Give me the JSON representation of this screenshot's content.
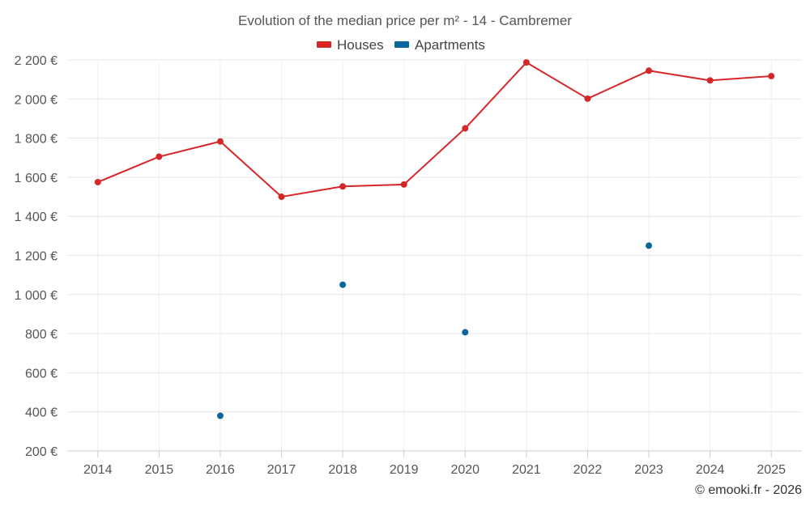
{
  "chart_data": {
    "type": "line",
    "title": "Evolution of the median price per m² - 14 - Cambremer",
    "credit": "© emooki.fr - 2026",
    "categories": [
      "2014",
      "2015",
      "2016",
      "2017",
      "2018",
      "2019",
      "2020",
      "2021",
      "2022",
      "2023",
      "2024",
      "2025"
    ],
    "ylim": [
      200,
      2200
    ],
    "yticks": [
      200,
      400,
      600,
      800,
      1000,
      1200,
      1400,
      1600,
      1800,
      2000,
      2200
    ],
    "ytick_labels": [
      "200 €",
      "400 €",
      "600 €",
      "800 €",
      "1 000 €",
      "1 200 €",
      "1 400 €",
      "1 600 €",
      "1 800 €",
      "2 000 €",
      "2 200 €"
    ],
    "grid": true,
    "legend_position": "top-center",
    "series": [
      {
        "name": "Houses",
        "color": "#d62728",
        "style": "line",
        "values": [
          1575,
          1705,
          1783,
          1500,
          1553,
          1563,
          1850,
          2187,
          2002,
          2145,
          2095,
          2117
        ]
      },
      {
        "name": "Apartments",
        "color": "#08679d",
        "style": "markers",
        "values": [
          null,
          null,
          380,
          null,
          1050,
          null,
          807,
          null,
          null,
          1250,
          null,
          null
        ]
      }
    ]
  }
}
